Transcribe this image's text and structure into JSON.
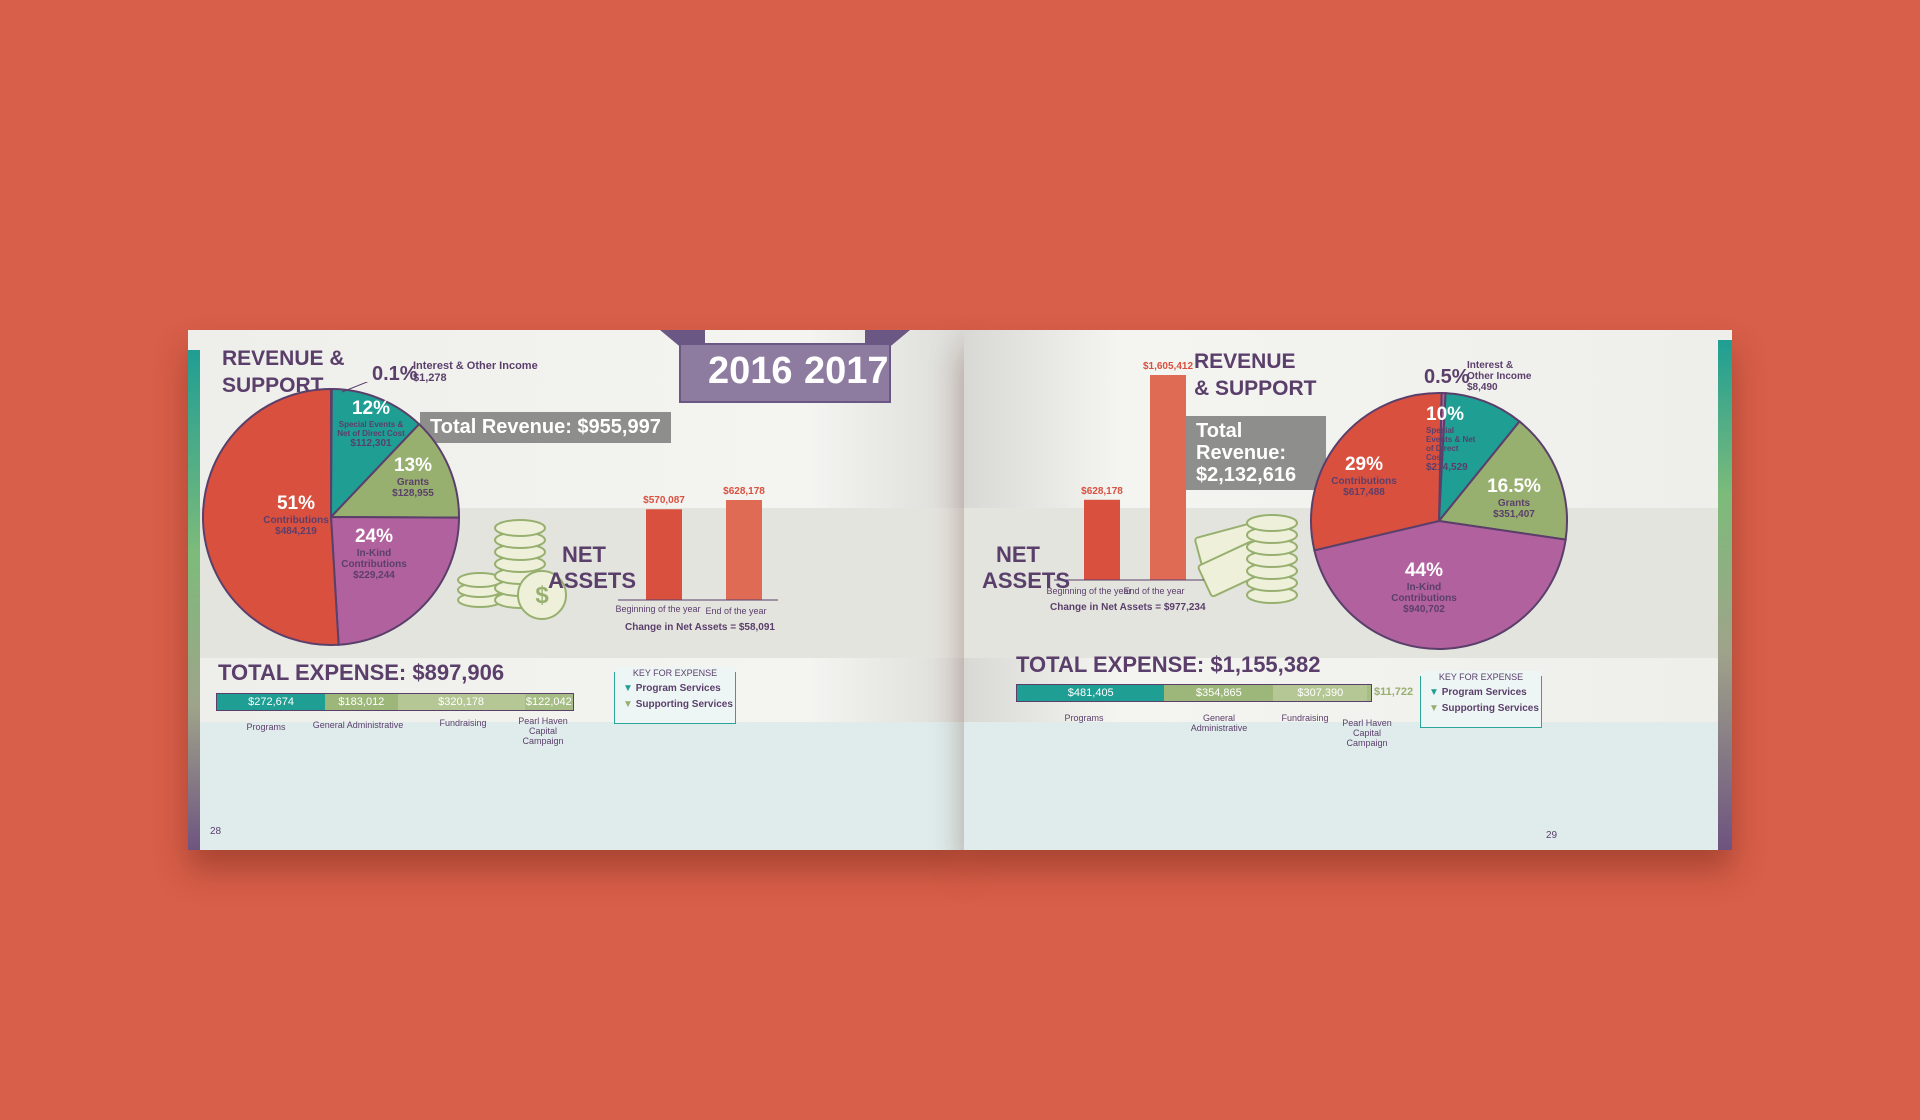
{
  "banner": {
    "year_left": "2016",
    "year_right": "2017"
  },
  "left": {
    "title_line1": "REVENUE &",
    "title_line2": "SUPPORT",
    "interest_pct": "0.1%",
    "interest_label": "Interest & Other Income",
    "interest_value": "$1,278",
    "total_revenue": "Total Revenue: $955,997",
    "net_line1": "NET",
    "net_line2": "ASSETS",
    "change": "Change in Net Assets = $58,091",
    "total_expense": "TOTAL EXPENSE: $897,906",
    "page_number": "28"
  },
  "right": {
    "title_line1": "REVENUE",
    "title_line2": "& SUPPORT",
    "interest_pct": "0.5%",
    "interest_label1": "Interest &",
    "interest_label2": "Other Income",
    "interest_value": "$8,490",
    "total_revenue_line1": "Total Revenue:",
    "total_revenue_line2": "$2,132,616",
    "net_line1": "NET",
    "net_line2": "ASSETS",
    "change": "Change in Net Assets = $977,234",
    "total_expense": "TOTAL EXPENSE: $1,155,382",
    "page_number": "29"
  },
  "key": {
    "title": "KEY FOR EXPENSE",
    "program": "Program Services",
    "supporting": "Supporting Services"
  },
  "colors": {
    "background": "#d85f49",
    "contributions": "#d9503f",
    "special_events": "#1f9e93",
    "grants": "#98b06f",
    "in_kind": "#b1619e",
    "teal": "#1f9e93",
    "green": "#98b06f",
    "purple": "#5b3f6b"
  },
  "chart_data": [
    {
      "type": "pie",
      "year": "2016",
      "slices": [
        {
          "pct": "51%",
          "label": "Contributions",
          "value": "$484,219",
          "share": 51
        },
        {
          "pct": "12%",
          "label": "Special Events & Net of Direct Cost",
          "value": "$112,301",
          "share": 12
        },
        {
          "pct": "13%",
          "label": "Grants",
          "value": "$128,955",
          "share": 13
        },
        {
          "pct": "24%",
          "label": "In-Kind Contributions",
          "value": "$229,244",
          "share": 24
        },
        {
          "pct": "0.1%",
          "label": "Interest & Other Income",
          "value": "$1,278",
          "share": 0.1
        }
      ]
    },
    {
      "type": "bar",
      "year": "2016",
      "title": "NET ASSETS",
      "categories": [
        "Beginning of the year",
        "End of the year"
      ],
      "values": [
        570087,
        628178
      ],
      "value_labels": [
        "$570,087",
        "$628,178"
      ]
    },
    {
      "type": "bar",
      "year": "2016",
      "title": "TOTAL EXPENSE: $897,906",
      "stacked": true,
      "categories": [
        "Programs",
        "General Administrative",
        "Fundraising",
        "Pearl Haven Capital Campaign"
      ],
      "values": [
        272674,
        183012,
        320178,
        122042
      ],
      "value_labels": [
        "$272,674",
        "$183,012",
        "$320,178",
        "$122,042"
      ]
    },
    {
      "type": "pie",
      "year": "2017",
      "slices": [
        {
          "pct": "29%",
          "label": "Contributions",
          "value": "$617,488",
          "share": 29
        },
        {
          "pct": "10%",
          "label": "Special Events & Net of Direct Cost",
          "value": "$214,529",
          "share": 10
        },
        {
          "pct": "16.5%",
          "label": "Grants",
          "value": "$351,407",
          "share": 16.5
        },
        {
          "pct": "44%",
          "label": "In-Kind Contributions",
          "value": "$940,702",
          "share": 44
        },
        {
          "pct": "0.5%",
          "label": "Interest & Other Income",
          "value": "$8,490",
          "share": 0.5
        }
      ]
    },
    {
      "type": "bar",
      "year": "2017",
      "title": "NET ASSETS",
      "categories": [
        "Beginning of the year",
        "End of the year"
      ],
      "values": [
        628178,
        1605412
      ],
      "value_labels": [
        "$628,178",
        "$1,605,412"
      ]
    },
    {
      "type": "bar",
      "year": "2017",
      "title": "TOTAL EXPENSE: $1,155,382",
      "stacked": true,
      "categories": [
        "Programs",
        "General Administrative",
        "Fundraising",
        "Pearl Haven Capital Campaign"
      ],
      "values": [
        481405,
        354865,
        307390,
        11722
      ],
      "value_labels": [
        "$481,405",
        "$354,865",
        "$307,390",
        "$11,722"
      ]
    }
  ]
}
